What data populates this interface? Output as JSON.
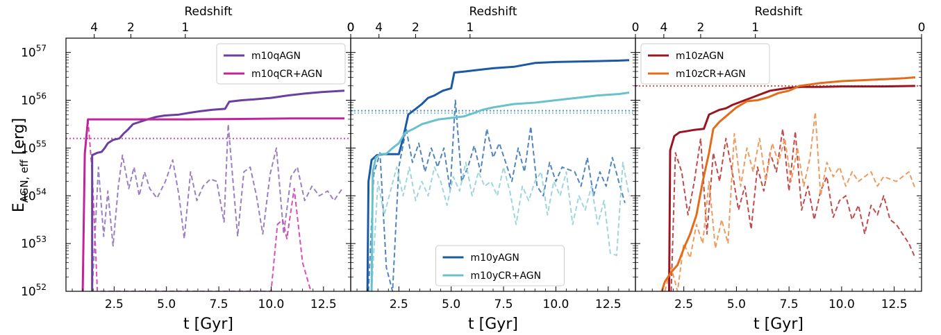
{
  "ylabel_main": "E",
  "ylabel_sub": "AGN, eff",
  "ylabel_unit": " [erg]",
  "chart_data": [
    {
      "type": "line",
      "panel": "left",
      "xlabel": "t [Gyr]",
      "top_xlabel": "Redshift",
      "xlim": [
        0.2,
        13.8
      ],
      "ylim_log10": [
        52,
        57.3
      ],
      "yscale": "log",
      "x_ticks": [
        2.5,
        5.0,
        7.5,
        10.0,
        12.5
      ],
      "x_tick_labels": [
        "2.5",
        "5.0",
        "7.5",
        "10.0",
        "12.5"
      ],
      "y_ticks_log10": [
        52,
        53,
        54,
        55,
        56,
        57
      ],
      "y_tick_labels": [
        "10",
        "10",
        "10",
        "10",
        "10",
        "10"
      ],
      "y_tick_exponents": [
        "52",
        "53",
        "54",
        "55",
        "56",
        "57"
      ],
      "redshift_ticks": [
        {
          "label": "4",
          "t": 1.55
        },
        {
          "label": "2",
          "t": 3.3
        },
        {
          "label": "1",
          "t": 5.9
        },
        {
          "label": "0",
          "t": 13.8
        }
      ],
      "legend_position": "upper right",
      "hline": {
        "log10": 55.2,
        "color": "#bb55aa"
      },
      "series": [
        {
          "name": "m10qAGN",
          "color": "#6a3fa0",
          "style": "solid",
          "x": [
            1.45,
            1.45,
            1.7,
            1.9,
            2.05,
            2.2,
            2.45,
            2.75,
            2.95,
            3.15,
            3.4,
            3.75,
            4.1,
            4.5,
            4.9,
            5.6,
            6.0,
            6.6,
            7.2,
            7.8,
            8.0,
            8.6,
            9.2,
            10.0,
            10.8,
            11.6,
            12.4,
            13.5
          ],
          "y_log10": [
            52,
            54.85,
            54.9,
            54.92,
            55.0,
            55.1,
            55.17,
            55.2,
            55.3,
            55.38,
            55.5,
            55.55,
            55.6,
            55.65,
            55.68,
            55.7,
            55.73,
            55.77,
            55.8,
            55.82,
            55.97,
            56.0,
            56.02,
            56.05,
            56.1,
            56.14,
            56.17,
            56.2
          ]
        },
        {
          "name": "m10qCR+AGN",
          "color": "#c0239a",
          "style": "solid",
          "x": [
            1.0,
            1.1,
            1.25,
            3.0,
            6.0,
            9.0,
            11.0,
            13.5
          ],
          "y_log10": [
            52,
            54.88,
            55.6,
            55.6,
            55.6,
            55.61,
            55.62,
            55.62
          ]
        },
        {
          "name": "",
          "color": "#9a80c2",
          "style": "dashed",
          "x": [
            1.45,
            1.75,
            2.0,
            2.2,
            2.45,
            2.7,
            2.9,
            3.2,
            3.45,
            3.7,
            3.95,
            4.2,
            4.55,
            4.95,
            5.3,
            5.6,
            5.85,
            6.15,
            6.45,
            6.75,
            7.1,
            7.4,
            7.75,
            7.95,
            8.4,
            8.7,
            9.0,
            9.3,
            9.6,
            9.95,
            10.25,
            10.6,
            10.95,
            11.25,
            11.6,
            11.95,
            12.3,
            12.7,
            13.0,
            13.4
          ],
          "y_log10": [
            52,
            54.6,
            53.15,
            54.1,
            52.95,
            54.2,
            54.85,
            54.15,
            54.6,
            54.0,
            54.5,
            54.15,
            53.95,
            54.3,
            54.75,
            54.0,
            53.1,
            54.5,
            53.9,
            54.2,
            54.35,
            54.3,
            53.45,
            55.5,
            53.15,
            54.5,
            54.6,
            54.0,
            53.2,
            54.45,
            55.0,
            53.2,
            54.4,
            54.6,
            53.9,
            54.2,
            54.0,
            54.1,
            53.9,
            54.15
          ]
        },
        {
          "name": "",
          "color": "#d64fb3",
          "style": "dashed",
          "x": [
            1.25,
            1.45,
            1.7,
            10.0,
            10.3,
            10.55,
            10.75,
            11.1,
            11.5,
            11.9
          ],
          "y_log10": [
            55.6,
            54.5,
            52.0,
            52.0,
            53.4,
            53.5,
            53.1,
            54.15,
            52.6,
            52.0
          ]
        }
      ]
    },
    {
      "type": "line",
      "panel": "middle",
      "xlabel": "t [Gyr]",
      "top_xlabel": "Redshift",
      "xlim": [
        0.2,
        13.8
      ],
      "ylim_log10": [
        52,
        57.3
      ],
      "yscale": "log",
      "x_ticks": [
        2.5,
        5.0,
        7.5,
        10.0,
        12.5
      ],
      "x_tick_labels": [
        "2.5",
        "5.0",
        "7.5",
        "10.0",
        "12.5"
      ],
      "redshift_ticks": [
        {
          "label": "0",
          "t": 0.2
        },
        {
          "label": "4",
          "t": 1.55
        },
        {
          "label": "2",
          "t": 3.3
        },
        {
          "label": "1",
          "t": 5.9
        },
        {
          "label": "0",
          "t": 13.8
        }
      ],
      "legend_position": "lower center",
      "hlines": [
        {
          "log10": 55.78,
          "color": "#5b8fcf"
        },
        {
          "log10": 55.73,
          "color": "#86cdd4"
        }
      ],
      "series": [
        {
          "name": "m10yAGN",
          "color": "#1a5aa5",
          "style": "solid",
          "x": [
            1.0,
            1.05,
            1.2,
            1.45,
            1.8,
            2.2,
            2.5,
            2.7,
            2.95,
            3.25,
            3.6,
            3.9,
            4.2,
            4.6,
            5.0,
            5.15,
            5.6,
            6.2,
            7.0,
            8.0,
            9.0,
            10.0,
            11.0,
            12.0,
            13.0,
            13.5
          ],
          "y_log10": [
            52,
            54.3,
            54.75,
            54.85,
            54.87,
            54.87,
            54.87,
            55.2,
            55.7,
            55.8,
            55.92,
            56.05,
            56.1,
            56.2,
            56.25,
            56.58,
            56.6,
            56.63,
            56.67,
            56.7,
            56.78,
            56.8,
            56.81,
            56.82,
            56.83,
            56.84
          ]
        },
        {
          "name": "m10yCR+AGN",
          "color": "#69c1cc",
          "style": "solid",
          "x": [
            1.2,
            1.25,
            1.4,
            1.6,
            1.9,
            2.2,
            2.5,
            2.8,
            3.2,
            3.6,
            4.0,
            4.4,
            5.0,
            5.6,
            6.0,
            6.5,
            7.0,
            8.0,
            9.0,
            10.0,
            11.0,
            12.0,
            13.0,
            13.5
          ],
          "y_log10": [
            52,
            54.5,
            54.8,
            54.87,
            54.88,
            55.0,
            55.1,
            55.32,
            55.4,
            55.5,
            55.55,
            55.6,
            55.63,
            55.66,
            55.72,
            55.8,
            55.85,
            55.92,
            55.95,
            56.0,
            56.05,
            56.1,
            56.13,
            56.16
          ]
        },
        {
          "name": "",
          "color": "#4f85bc",
          "style": "dashed",
          "x": [
            1.05,
            1.3,
            1.6,
            1.9,
            2.2,
            2.5,
            2.85,
            3.15,
            3.45,
            3.75,
            4.05,
            4.35,
            4.65,
            4.95,
            5.2,
            5.5,
            5.8,
            6.1,
            6.4,
            6.7,
            7.0,
            7.3,
            7.6,
            7.9,
            8.2,
            8.5,
            8.8,
            9.1,
            9.4,
            9.7,
            10.0,
            10.3,
            10.6,
            10.9,
            11.2,
            11.5,
            11.8,
            12.1,
            12.4,
            12.7,
            13.0,
            13.3
          ],
          "y_log10": [
            52,
            54.45,
            54.9,
            52.5,
            52.0,
            54.6,
            55.4,
            54.7,
            55.1,
            54.5,
            55.0,
            54.6,
            55.0,
            54.1,
            56.0,
            54.3,
            54.6,
            55.05,
            54.5,
            55.4,
            54.8,
            55.1,
            54.7,
            54.3,
            55.0,
            54.5,
            55.45,
            54.2,
            54.0,
            54.7,
            54.3,
            54.6,
            54.55,
            54.5,
            54.2,
            54.8,
            54.0,
            54.5,
            54.2,
            54.8,
            54.3,
            53.85
          ]
        },
        {
          "name": "",
          "color": "#9ed6dc",
          "style": "dashed",
          "x": [
            1.2,
            1.5,
            1.8,
            2.1,
            2.4,
            2.7,
            3.0,
            3.3,
            3.6,
            3.9,
            4.2,
            4.5,
            4.8,
            5.1,
            5.4,
            5.7,
            6.0,
            6.3,
            6.6,
            6.9,
            7.2,
            7.5,
            7.8,
            8.1,
            8.4,
            8.7,
            9.0,
            9.3,
            9.6,
            9.9,
            10.2,
            10.5,
            10.8,
            11.1,
            11.4,
            11.7,
            12.0,
            12.3,
            12.6,
            12.9,
            13.2,
            13.5
          ],
          "y_log10": [
            52,
            54.3,
            53.6,
            54.1,
            54.6,
            54.0,
            54.6,
            53.9,
            54.3,
            54.0,
            54.6,
            54.3,
            53.8,
            54.4,
            54.1,
            54.7,
            54.0,
            54.5,
            54.2,
            54.3,
            54.0,
            54.6,
            54.1,
            53.4,
            54.2,
            53.9,
            54.3,
            54.5,
            53.6,
            54.3,
            54.0,
            54.5,
            53.4,
            54.0,
            53.7,
            54.2,
            53.4,
            53.9,
            52.8,
            52.75,
            54.7,
            54.0
          ]
        }
      ]
    },
    {
      "type": "line",
      "panel": "right",
      "xlabel": "t [Gyr]",
      "top_xlabel": "Redshift",
      "xlim": [
        0.2,
        13.8
      ],
      "ylim_log10": [
        52,
        57.3
      ],
      "yscale": "log",
      "x_ticks": [
        2.5,
        5.0,
        7.5,
        10.0,
        12.5
      ],
      "x_tick_labels": [
        "2.5",
        "5.0",
        "7.5",
        "10.0",
        "12.5"
      ],
      "redshift_ticks": [
        {
          "label": "4",
          "t": 1.55
        },
        {
          "label": "2",
          "t": 3.3
        },
        {
          "label": "1",
          "t": 5.9
        },
        {
          "label": "0",
          "t": 13.8
        }
      ],
      "legend_position": "upper left",
      "hline": {
        "log10": 56.3,
        "color": "#c9553a"
      },
      "series": [
        {
          "name": "m10zAGN",
          "color": "#9b1422",
          "style": "solid",
          "x": [
            1.8,
            1.85,
            2.05,
            2.3,
            2.6,
            3.0,
            3.45,
            3.7,
            3.95,
            4.2,
            4.5,
            4.8,
            5.1,
            5.4,
            5.7,
            6.0,
            6.3,
            6.6,
            6.9,
            7.2,
            7.5,
            7.8,
            8.1,
            8.5,
            9.0,
            10.0,
            11.0,
            12.0,
            13.5
          ],
          "y_log10": [
            52,
            54.95,
            55.25,
            55.33,
            55.35,
            55.38,
            55.4,
            55.7,
            55.75,
            55.8,
            55.83,
            55.9,
            55.95,
            56.0,
            56.05,
            56.1,
            56.15,
            56.2,
            56.22,
            56.24,
            56.26,
            56.27,
            56.28,
            56.28,
            56.28,
            56.29,
            56.29,
            56.29,
            56.3
          ]
        },
        {
          "name": "m10zCR+AGN",
          "color": "#e36c1a",
          "style": "solid",
          "x": [
            1.45,
            1.6,
            1.9,
            2.2,
            2.5,
            2.8,
            3.1,
            3.4,
            3.7,
            3.9,
            4.2,
            4.6,
            5.0,
            5.5,
            6.0,
            6.5,
            7.0,
            7.5,
            8.0,
            8.5,
            9.0,
            10.0,
            11.0,
            12.0,
            13.0,
            13.5
          ],
          "y_log10": [
            52,
            52.2,
            52.4,
            52.55,
            52.9,
            53.2,
            53.6,
            54.3,
            54.9,
            55.4,
            55.55,
            55.7,
            55.85,
            55.98,
            56.0,
            56.06,
            56.15,
            56.2,
            56.3,
            56.33,
            56.36,
            56.4,
            56.42,
            56.44,
            56.46,
            56.48
          ]
        },
        {
          "name": "",
          "color": "#c04a4a",
          "style": "dashed",
          "x": [
            1.9,
            2.1,
            2.4,
            2.7,
            3.0,
            3.3,
            3.6,
            3.9,
            4.2,
            4.5,
            4.8,
            5.1,
            5.4,
            5.7,
            6.0,
            6.3,
            6.6,
            6.9,
            7.2,
            7.5,
            7.8,
            8.1,
            8.4,
            8.7,
            9.0,
            9.3,
            9.6,
            9.9,
            10.2,
            10.5,
            10.8,
            11.1,
            11.4,
            11.7,
            12.0,
            12.3,
            12.6,
            12.9,
            13.2,
            13.5
          ],
          "y_log10": [
            52,
            54.9,
            54.5,
            53.6,
            54.3,
            55.2,
            53.2,
            54.9,
            54.3,
            55.2,
            54.5,
            53.7,
            54.2,
            53.3,
            54.6,
            54.1,
            54.9,
            54.5,
            55.4,
            54.1,
            55.35,
            53.7,
            54.2,
            53.5,
            54.1,
            54.4,
            53.55,
            53.9,
            54.0,
            53.5,
            53.8,
            53.2,
            53.8,
            53.6,
            54.0,
            53.5,
            53.4,
            53.2,
            53.0,
            52.7
          ]
        },
        {
          "name": "",
          "color": "#ef9b5e",
          "style": "dashed",
          "x": [
            1.6,
            1.9,
            2.2,
            2.5,
            2.8,
            3.1,
            3.4,
            3.7,
            4.0,
            4.3,
            4.6,
            4.9,
            5.2,
            5.5,
            5.8,
            6.1,
            6.4,
            6.7,
            7.0,
            7.3,
            7.6,
            7.9,
            8.2,
            8.5,
            8.75,
            9.0,
            9.3,
            9.6,
            9.9,
            10.2,
            10.5,
            10.8,
            11.1,
            11.4,
            11.7,
            12.0,
            12.3,
            12.6,
            12.9,
            13.2,
            13.5
          ],
          "y_log10": [
            52,
            52.5,
            52.0,
            53.0,
            52.7,
            53.4,
            53.0,
            54.3,
            52.9,
            53.5,
            53.0,
            55.3,
            54.2,
            55.0,
            54.5,
            55.2,
            54.3,
            55.1,
            54.7,
            55.2,
            54.3,
            55.0,
            54.2,
            54.8,
            55.75,
            54.0,
            54.7,
            54.4,
            54.6,
            54.2,
            54.5,
            54.3,
            54.4,
            54.5,
            54.2,
            54.4,
            54.35,
            54.3,
            54.4,
            54.5,
            54.15
          ]
        }
      ]
    }
  ]
}
